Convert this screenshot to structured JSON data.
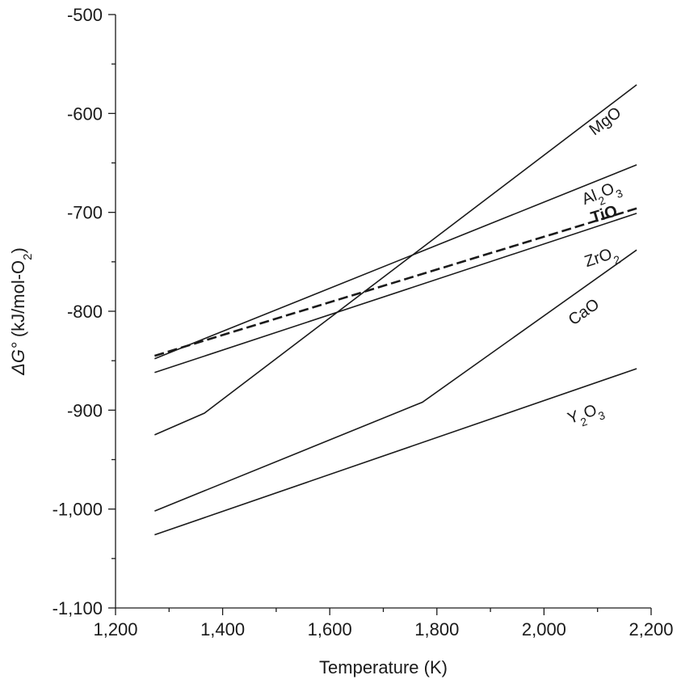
{
  "chart_data": {
    "type": "line",
    "xlabel": "Temperature (K)",
    "ylabel": {
      "prefix": "ΔG°",
      "text": "(kJ/mol-O",
      "sub": "2",
      "end": ")"
    },
    "xlim": [
      1200,
      2200
    ],
    "ylim": [
      -1100,
      -500
    ],
    "x_ticks": [
      {
        "value": 1200,
        "label": "1,200"
      },
      {
        "value": 1400,
        "label": "1,400"
      },
      {
        "value": 1600,
        "label": "1,600"
      },
      {
        "value": 1800,
        "label": "1,800"
      },
      {
        "value": 2000,
        "label": "2,000"
      },
      {
        "value": 2200,
        "label": "2,200"
      }
    ],
    "y_ticks": [
      {
        "value": -500,
        "label": "-500"
      },
      {
        "value": -600,
        "label": "-600"
      },
      {
        "value": -700,
        "label": "-700"
      },
      {
        "value": -800,
        "label": "-800"
      },
      {
        "value": -900,
        "label": "-900"
      },
      {
        "value": -1000,
        "label": "-1,000"
      },
      {
        "value": -1100,
        "label": "-1,100"
      }
    ],
    "x_minor_ticks": [
      1300,
      1500,
      1700,
      1900,
      2100
    ],
    "y_minor_ticks": [
      -550,
      -650,
      -750,
      -850,
      -950,
      -1050
    ],
    "grid": false,
    "legend": "none",
    "series": [
      {
        "key": "MgO",
        "label": [
          [
            "MgO",
            ""
          ]
        ],
        "style": "solid",
        "bold": false,
        "label_at": [
          2120,
          -612
        ],
        "points": [
          [
            1273,
            -925
          ],
          [
            1366,
            -903
          ],
          [
            2173,
            -571
          ]
        ]
      },
      {
        "key": "Al2O3",
        "label": [
          [
            "Al",
            ""
          ],
          [
            "2",
            "sub"
          ],
          [
            "O",
            ""
          ],
          [
            "3",
            "sub"
          ]
        ],
        "style": "solid",
        "bold": false,
        "label_at": [
          2110,
          -685
        ],
        "points": [
          [
            1273,
            -848
          ],
          [
            2173,
            -652
          ]
        ]
      },
      {
        "key": "TiO",
        "label": [
          [
            "TiO",
            ""
          ]
        ],
        "style": "dashed",
        "bold": true,
        "label_at": [
          2115,
          -707
        ],
        "points": [
          [
            1273,
            -845
          ],
          [
            2173,
            -696
          ]
        ]
      },
      {
        "key": "ZrO2",
        "label": [
          [
            "ZrO",
            ""
          ],
          [
            "2",
            "sub"
          ]
        ],
        "style": "solid",
        "bold": false,
        "label_at": [
          2110,
          -750
        ],
        "points": [
          [
            1273,
            -862
          ],
          [
            2173,
            -701
          ]
        ]
      },
      {
        "key": "CaO",
        "label": [
          [
            "CaO",
            ""
          ]
        ],
        "style": "solid",
        "bold": false,
        "label_at": [
          2080,
          -805
        ],
        "points": [
          [
            1273,
            -1002
          ],
          [
            1773,
            -892
          ],
          [
            2173,
            -738
          ]
        ]
      },
      {
        "key": "Y2O3",
        "label": [
          [
            "Y",
            ""
          ],
          [
            "2",
            "sub"
          ],
          [
            "O",
            ""
          ],
          [
            "3",
            "sub"
          ]
        ],
        "style": "solid",
        "bold": false,
        "label_at": [
          2080,
          -908
        ],
        "points": [
          [
            1273,
            -1026
          ],
          [
            2173,
            -858
          ]
        ]
      }
    ]
  }
}
